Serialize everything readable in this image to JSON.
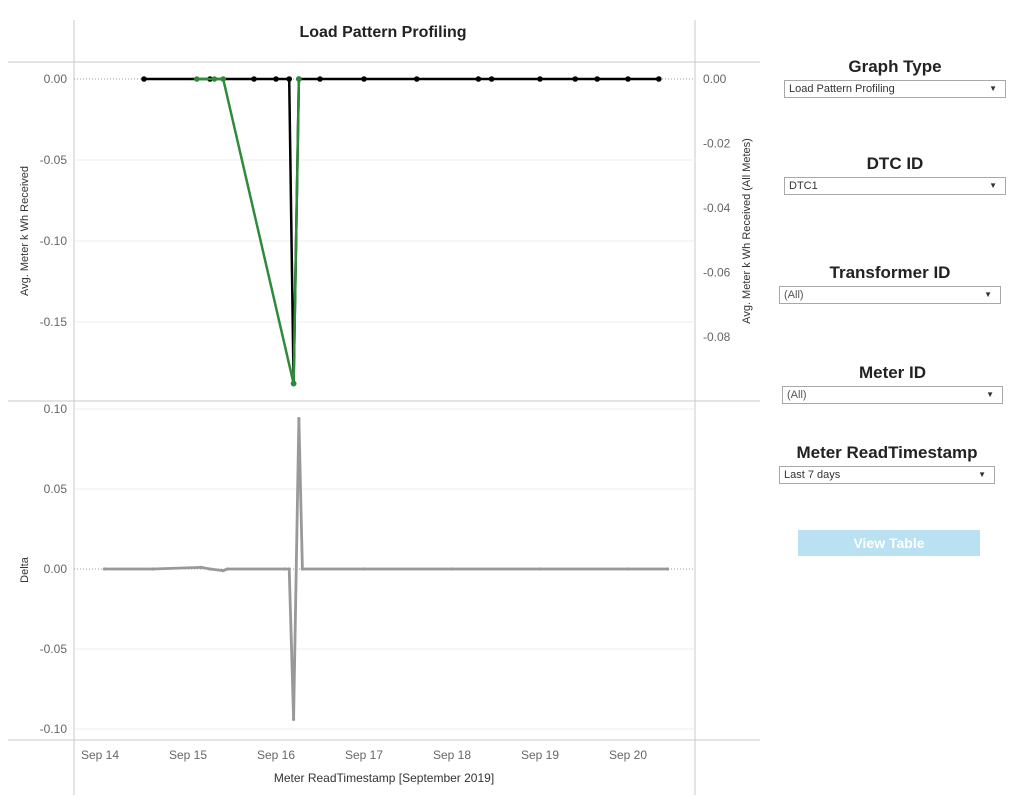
{
  "chart_data": {
    "type": "line",
    "title": "Load Pattern Profiling",
    "xlabel": "Meter ReadTimestamp [September 2019]",
    "x_tick_labels": [
      "Sep 14",
      "Sep 15",
      "Sep 16",
      "Sep 17",
      "Sep 18",
      "Sep 19",
      "Sep 20"
    ],
    "top_panel": {
      "ylabel_left": "Avg. Meter k Wh Received",
      "ylabel_right": "Avg. Meter k Wh Received (All Metes)",
      "ylim_left": [
        -0.19,
        0.01
      ],
      "yticks_left": [
        "0.00",
        "-0.05",
        "-0.10",
        "-0.15"
      ],
      "yticks_right": [
        "0.00",
        "-0.02",
        "-0.04",
        "-0.06",
        "-0.08"
      ],
      "series": [
        {
          "color": "#000000",
          "points": [
            {
              "x": 14.5,
              "y": 0.0
            },
            {
              "x": 15.25,
              "y": 0.0
            },
            {
              "x": 15.75,
              "y": 0.0
            },
            {
              "x": 16.0,
              "y": 0.0
            },
            {
              "x": 16.15,
              "y": 0.0
            },
            {
              "x": 16.2,
              "y": -0.188
            },
            {
              "x": 16.26,
              "y": 0.0
            },
            {
              "x": 16.5,
              "y": 0.0
            },
            {
              "x": 17.0,
              "y": 0.0
            },
            {
              "x": 17.6,
              "y": 0.0
            },
            {
              "x": 18.3,
              "y": 0.0
            },
            {
              "x": 18.45,
              "y": 0.0
            },
            {
              "x": 19.0,
              "y": 0.0
            },
            {
              "x": 19.4,
              "y": 0.0
            },
            {
              "x": 19.65,
              "y": 0.0
            },
            {
              "x": 20.0,
              "y": 0.0
            },
            {
              "x": 20.35,
              "y": 0.0
            }
          ]
        },
        {
          "color": "#2e8b3a",
          "points": [
            {
              "x": 15.1,
              "y": 0.0
            },
            {
              "x": 15.3,
              "y": 0.0
            },
            {
              "x": 15.4,
              "y": 0.0
            },
            {
              "x": 16.2,
              "y": -0.188
            },
            {
              "x": 16.26,
              "y": 0.0
            }
          ]
        }
      ]
    },
    "bottom_panel": {
      "ylabel": "Delta",
      "ylim": [
        -0.1,
        0.1
      ],
      "yticks": [
        "0.10",
        "0.05",
        "0.00",
        "-0.05",
        "-0.10"
      ],
      "series": [
        {
          "color": "#999999",
          "points": [
            {
              "x": 14.05,
              "y": 0.0
            },
            {
              "x": 14.6,
              "y": 0.0
            },
            {
              "x": 15.15,
              "y": 0.001
            },
            {
              "x": 15.25,
              "y": 0.0
            },
            {
              "x": 15.4,
              "y": -0.001
            },
            {
              "x": 15.45,
              "y": 0.0
            },
            {
              "x": 16.1,
              "y": 0.0
            },
            {
              "x": 16.15,
              "y": 0.0
            },
            {
              "x": 16.2,
              "y": -0.094
            },
            {
              "x": 16.26,
              "y": 0.094
            },
            {
              "x": 16.3,
              "y": 0.0
            },
            {
              "x": 17.0,
              "y": 0.0
            },
            {
              "x": 18.0,
              "y": 0.0
            },
            {
              "x": 19.0,
              "y": 0.0
            },
            {
              "x": 20.0,
              "y": 0.0
            },
            {
              "x": 20.45,
              "y": 0.0
            }
          ]
        }
      ]
    }
  },
  "controls": {
    "graph_type": {
      "title": "Graph Type",
      "value": "Load Pattern Profiling"
    },
    "dtc_id": {
      "title": "DTC ID",
      "value": "DTC1"
    },
    "transformer_id": {
      "title": "Transformer ID",
      "value": "(All)"
    },
    "meter_id": {
      "title": "Meter ID",
      "value": "(All)"
    },
    "meter_read_timestamp": {
      "title": "Meter ReadTimestamp",
      "value": "Last 7 days"
    },
    "view_table_label": "View Table"
  },
  "colors": {
    "accent_button": "#b9e1f1",
    "series_primary": "#000000",
    "series_green": "#2e8b3a",
    "series_delta": "#999999"
  },
  "icons": {
    "dropdown": "triangle-down-icon"
  }
}
